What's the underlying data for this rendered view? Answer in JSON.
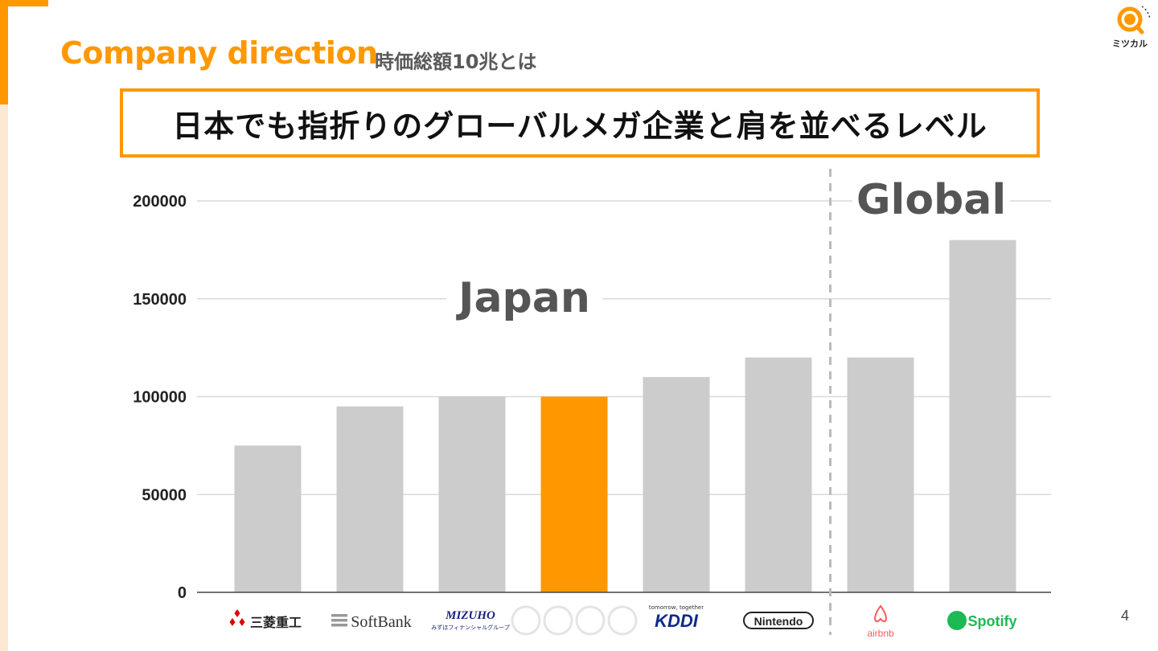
{
  "header": {
    "title": "Company direction",
    "subtitle": "時価総額10兆とは",
    "headline": "日本でも指折りのグローバルメガ企業と肩を並べるレベル"
  },
  "brand": {
    "logo_text": "ミツカル",
    "logo_icon": "magnifier-clock-icon"
  },
  "page_number": "4",
  "colors": {
    "accent": "#ff9800",
    "bar": "#cccccc",
    "highlight_bar": "#ff9800",
    "grid": "#d9d9d9",
    "divider": "#bbbbbb"
  },
  "chart_data": {
    "type": "bar",
    "categories": [
      "三菱重工",
      "SoftBank",
      "MIZUHO",
      "",
      "KDDI",
      "Nintendo",
      "airbnb",
      "Spotify"
    ],
    "values": [
      75000,
      95000,
      100000,
      100000,
      110000,
      120000,
      120000,
      180000
    ],
    "highlight_index": 3,
    "ylim": [
      0,
      200000
    ],
    "yticks": [
      "0",
      "50000",
      "100000",
      "150000",
      "200000"
    ],
    "xlabel": "",
    "ylabel": "",
    "grid": true,
    "regions": [
      {
        "label": "Japan",
        "from": 0,
        "to": 5
      },
      {
        "label": "Global",
        "from": 6,
        "to": 7
      }
    ],
    "category_icons": [
      "mitsubishi-diamond-icon",
      "softbank-bars-icon",
      "",
      "",
      "",
      "",
      "airbnb-icon",
      "spotify-icon"
    ],
    "category_sublabels": [
      "",
      "",
      "みずほフィナンシャルグループ",
      "",
      "tomorrow, together",
      "",
      "",
      ""
    ]
  }
}
